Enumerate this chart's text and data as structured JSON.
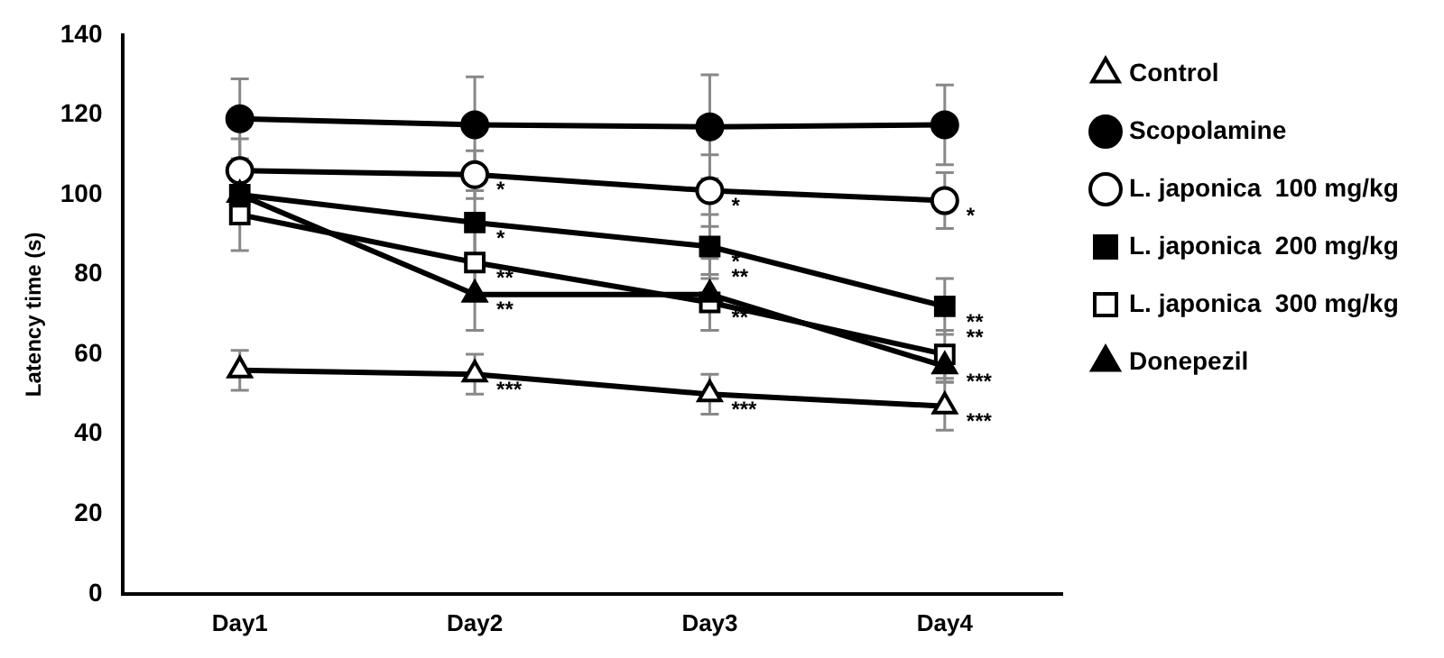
{
  "chart_data": {
    "type": "line",
    "ylabel": "Latency time (s)",
    "categories": [
      "Day1",
      "Day2",
      "Day3",
      "Day4"
    ],
    "ylim": [
      0,
      140
    ],
    "yticks": [
      0,
      20,
      40,
      60,
      80,
      100,
      120,
      140
    ],
    "grid": false,
    "legend": "right",
    "line_style": "solid",
    "series": [
      {
        "name": "Control",
        "color": "#000000",
        "marker": "triangle",
        "colors": [
          "#ffffff",
          "#ffffff",
          "#ffffff",
          "#ffffff"
        ],
        "values": [
          56,
          55,
          50,
          47
        ],
        "errors": [
          5,
          5,
          5,
          6
        ]
      },
      {
        "name": "Scopolamine",
        "color": "#000000",
        "marker": "circle",
        "values": [
          119,
          117.5,
          117,
          117.5
        ],
        "errors": [
          10,
          12,
          13,
          10
        ]
      },
      {
        "name": "L. japonica  100 mg/kg",
        "color": "#000000",
        "marker": "circle",
        "colors": [
          "#ffffff",
          "#ffffff",
          "#ffffff",
          "#ffffff"
        ],
        "values": [
          106,
          105,
          101,
          98.5
        ],
        "errors": [
          8,
          6,
          9,
          7
        ]
      },
      {
        "name": "L. japonica  200 mg/kg",
        "color": "#000000",
        "marker": "square",
        "values": [
          100,
          93,
          87,
          72
        ],
        "errors": [
          6,
          8,
          8,
          7
        ]
      },
      {
        "name": "L. japonica  300 mg/kg",
        "color": "#000000",
        "marker": "square",
        "colors": [
          "#ffffff",
          "#ffffff",
          "#ffffff",
          "#ffffff"
        ],
        "values": [
          95,
          83,
          73,
          60
        ],
        "errors": [
          9,
          8,
          7,
          6
        ]
      },
      {
        "name": "Donepezil",
        "color": "#000000",
        "marker": "triangle",
        "values": [
          100,
          75,
          75,
          57
        ],
        "errors": [
          6,
          9,
          9,
          4
        ]
      }
    ],
    "annotations": [
      {
        "text": "*",
        "x": "Day2",
        "y": 105
      },
      {
        "text": "*",
        "x": "Day2",
        "y": 93
      },
      {
        "text": "**",
        "x": "Day2",
        "y": 83
      },
      {
        "text": "**",
        "x": "Day2",
        "y": 75
      },
      {
        "text": "***",
        "x": "Day2",
        "y": 55
      },
      {
        "text": "*",
        "x": "Day3",
        "y": 101
      },
      {
        "text": "*",
        "x": "Day3",
        "y": 87
      },
      {
        "text": "**",
        "x": "Day3",
        "y": 75
      },
      {
        "text": "**",
        "x": "Day3",
        "y": 73
      },
      {
        "text": "***",
        "x": "Day3",
        "y": 50
      },
      {
        "text": "*",
        "x": "Day4",
        "y": 98.5
      },
      {
        "text": "**",
        "x": "Day4",
        "y": 72
      },
      {
        "text": "**",
        "x": "Day4",
        "y": 60
      },
      {
        "text": "***",
        "x": "Day4",
        "y": 57
      },
      {
        "text": "***",
        "x": "Day4",
        "y": 47
      }
    ]
  }
}
